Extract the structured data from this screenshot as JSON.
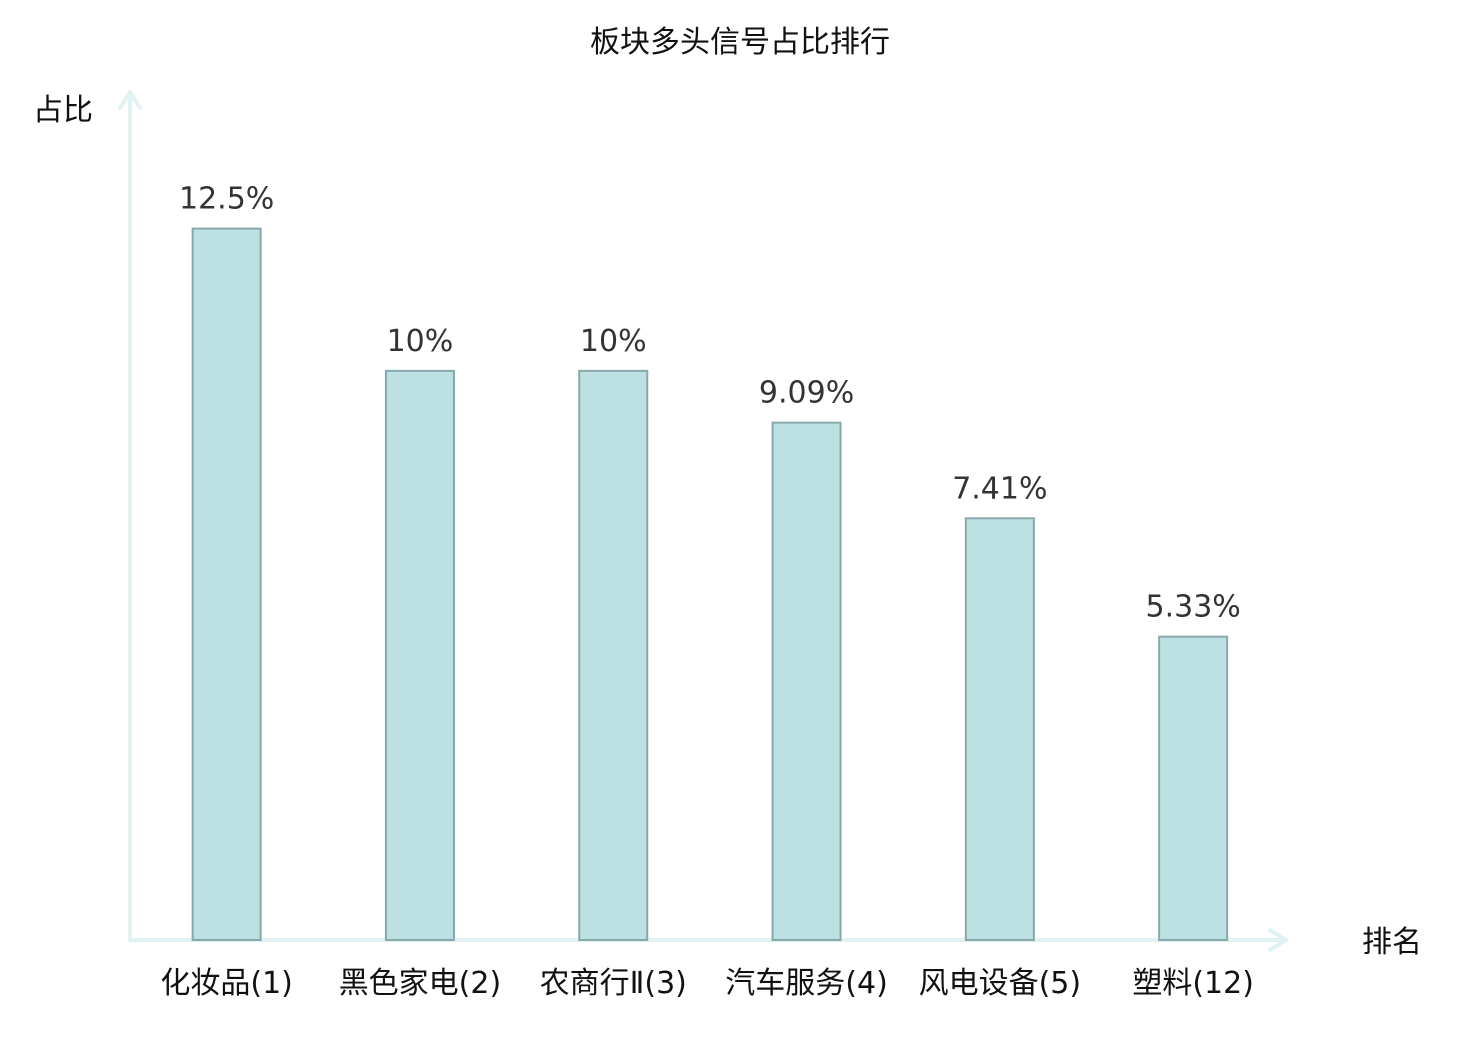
{
  "chart_data": {
    "type": "bar",
    "title": "板块多头信号占比排行",
    "xlabel": "排名",
    "ylabel": "占比",
    "categories": [
      "化妆品(1)",
      "黑色家电(2)",
      "农商行Ⅱ(3)",
      "汽车服务(4)",
      "风电设备(5)",
      "塑料(12)"
    ],
    "values": [
      12.5,
      10,
      10,
      9.09,
      7.41,
      5.33
    ],
    "value_labels": [
      "12.5%",
      "10%",
      "10%",
      "9.09%",
      "7.41%",
      "5.33%"
    ],
    "highlight_index": 5,
    "ylim": [
      0,
      14.9
    ],
    "grid": false,
    "colors": {
      "bar_fill": "#bde0e3",
      "bar_stroke": "#86a9ac",
      "axis": "#e0f2f1",
      "text": "#111111",
      "value_text": "#333333",
      "highlight_text": "#e01010"
    }
  }
}
